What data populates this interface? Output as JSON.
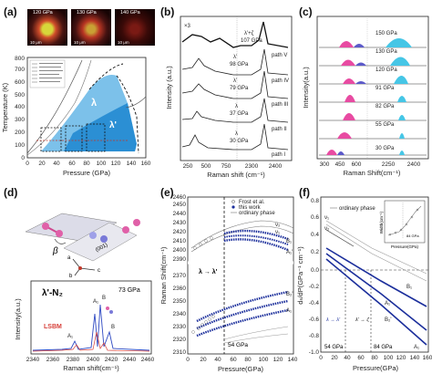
{
  "panels": {
    "a": {
      "label": "(a)",
      "micro": [
        {
          "pressure": "120 GPa",
          "scale": "10 μm"
        },
        {
          "pressure": "130 GPa",
          "scale": "10 μm"
        },
        {
          "pressure": "140 GPa",
          "scale": "10 μm"
        }
      ],
      "xlabel": "Pressure (GPa)",
      "ylabel": "Temperature (K)",
      "xticks": [
        "0",
        "20",
        "40",
        "60",
        "80",
        "100",
        "120",
        "140",
        "160"
      ],
      "yticks": [
        "0",
        "100",
        "200",
        "300",
        "400",
        "500",
        "600",
        "700",
        "800"
      ],
      "regions": [
        "λ",
        "λ'"
      ]
    },
    "b": {
      "label": "(b)",
      "xlabel": "Raman shift (cm⁻¹)",
      "ylabel": "Intensity (a.u.)",
      "xticks": [
        "250",
        "500",
        "750",
        "2300",
        "2400"
      ],
      "multiplier": "×3",
      "spectra": [
        {
          "phase": "λ'+ζ",
          "pressure": "107 GPa",
          "path": "path V"
        },
        {
          "phase": "λ'",
          "pressure": "98 GPa",
          "path": "path IV"
        },
        {
          "phase": "λ'",
          "pressure": "79 GPa",
          "path": "path III"
        },
        {
          "phase": "λ",
          "pressure": "37 GPa",
          "path": "path II"
        },
        {
          "phase": "λ",
          "pressure": "30 GPa",
          "path": "path I"
        }
      ]
    },
    "c": {
      "label": "(c)",
      "xlabel": "Raman Shift(cm⁻¹)",
      "ylabel": "Intensity(a.u.)",
      "xticks": [
        "300",
        "450",
        "600",
        "2250",
        "2400"
      ],
      "pressures": [
        "150 GPa",
        "130 GPa",
        "120 GPa",
        "91 GPa",
        "82 GPa",
        "55 GPa",
        "30 GPa"
      ]
    },
    "d": {
      "label": "(d)",
      "angle": "β",
      "plane": "(001)",
      "axes": [
        "a",
        "b",
        "c"
      ],
      "inset_title": "λ'-N₂",
      "pressure": "73 GPa",
      "lsbm": "LSBM",
      "peaks": [
        "A₁",
        "A₁",
        "B",
        "B"
      ],
      "xlabel": "Raman shift(cm⁻¹)",
      "ylabel": "Intensity(a.u.)",
      "xticks": [
        "2340",
        "2360",
        "2380",
        "2400",
        "2420",
        "2440",
        "2460"
      ]
    },
    "e": {
      "label": "(e)",
      "xlabel": "Pressure(GPa)",
      "ylabel": "Raman Shift(cm⁻¹)",
      "legend": [
        "Frost et al.",
        "this work",
        "ordinary phase"
      ],
      "transition": "λ → λ'",
      "vline": "54 GPa",
      "xticks": [
        "0",
        "20",
        "40",
        "60",
        "80",
        "100",
        "120",
        "140"
      ],
      "yticks": [
        "2310",
        "2320",
        "2330",
        "2340",
        "2350",
        "2360",
        "2370",
        "2380",
        "2390",
        "2400",
        "2410",
        "2420",
        "2430",
        "2440",
        "2450",
        "2460"
      ],
      "modes": [
        "ν₂",
        "ν₁",
        "B₁",
        "A₁'",
        "B₂'",
        "A₁"
      ]
    },
    "f": {
      "label": "(f)",
      "xlabel": "Pressure(GPa)",
      "ylabel": "dₙ/dP(GPa⁻¹ cm⁻¹)",
      "legend": [
        "ordinary phase"
      ],
      "vlines": [
        "54 GPa",
        "84 GPa"
      ],
      "annotations": [
        "λ → λ'",
        "λ' → ζ"
      ],
      "inset_xlabel": "Pressure(GPa)",
      "inset_ylabel": "Width(cm⁻¹)",
      "inset_note": "84 GPa",
      "xticks": [
        "0",
        "20",
        "40",
        "60",
        "80",
        "100",
        "120",
        "140",
        "160"
      ],
      "yticks": [
        "0.8",
        "0.6",
        "0.4",
        "0.2",
        "0.0",
        "-0.2",
        "-0.4",
        "-0.6",
        "-0.8",
        "-1.0"
      ],
      "modes": [
        "ν₁",
        "ν₂",
        "B₁",
        "A₁'",
        "B₂'",
        "A₁"
      ]
    }
  }
}
